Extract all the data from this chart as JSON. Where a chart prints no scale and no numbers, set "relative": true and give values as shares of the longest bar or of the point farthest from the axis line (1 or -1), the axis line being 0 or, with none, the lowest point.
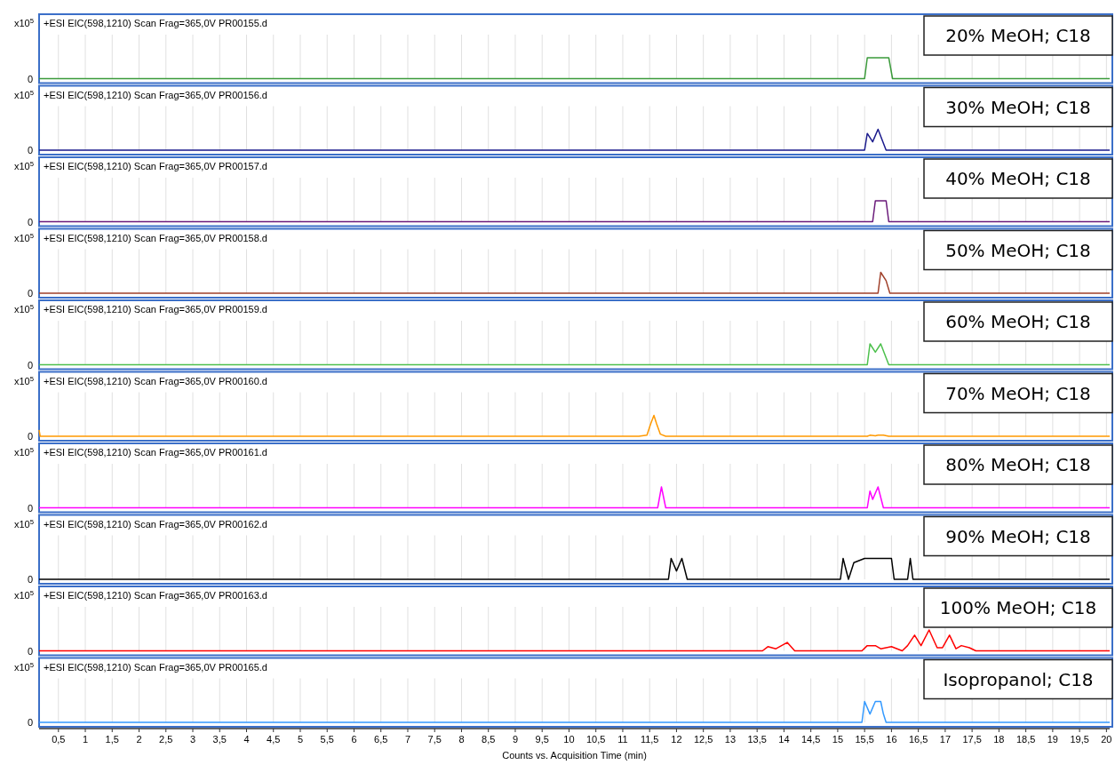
{
  "chart_data": [
    {
      "type": "line",
      "relative": true,
      "title": "20% MeOH; C18",
      "subtitle": "+ESI EIC(598,1210) Scan Frag=365,0V PR00155.d",
      "ylabel": "x10$^{5}$",
      "annotations": [
        "0"
      ],
      "grid": "x",
      "tick_labels": false,
      "xlim": [
        0.14,
        20.06
      ],
      "xticks": [
        0.5,
        1,
        1.5,
        2,
        2.5,
        3,
        3.5,
        4,
        4.5,
        5,
        5.5,
        6,
        6.5,
        7,
        7.5,
        8,
        8.5,
        9,
        9.5,
        10,
        10.5,
        11,
        11.5,
        12,
        12.5,
        13,
        13.5,
        14,
        14.5,
        15,
        15.5,
        16,
        16.5,
        17,
        17.5,
        18,
        18.5,
        19,
        19.5,
        20
      ],
      "series": [
        {
          "color": "#3a9a3a",
          "x": [
            0.14,
            15.5,
            15.55,
            15.95,
            16.02,
            20.06
          ],
          "values": [
            0,
            0,
            1,
            1,
            0,
            0
          ]
        }
      ]
    },
    {
      "type": "line",
      "relative": true,
      "title": "30% MeOH; C18",
      "subtitle": "+ESI EIC(598,1210) Scan Frag=365,0V PR00156.d",
      "ylabel": "x10$^{5}$",
      "annotations": [
        "0"
      ],
      "grid": "x",
      "tick_labels": false,
      "xlim": [
        0.14,
        20.06
      ],
      "xticks": [
        0.5,
        1,
        1.5,
        2,
        2.5,
        3,
        3.5,
        4,
        4.5,
        5,
        5.5,
        6,
        6.5,
        7,
        7.5,
        8,
        8.5,
        9,
        9.5,
        10,
        10.5,
        11,
        11.5,
        12,
        12.5,
        13,
        13.5,
        14,
        14.5,
        15,
        15.5,
        16,
        16.5,
        17,
        17.5,
        18,
        18.5,
        19,
        19.5,
        20
      ],
      "series": [
        {
          "color": "#1a1a8c",
          "x": [
            0.14,
            15.5,
            15.55,
            15.65,
            15.75,
            15.9,
            20.06
          ],
          "values": [
            0,
            0,
            0.8,
            0.4,
            1,
            0,
            0
          ]
        }
      ]
    },
    {
      "type": "line",
      "relative": true,
      "title": "40% MeOH; C18",
      "subtitle": "+ESI EIC(598,1210) Scan Frag=365,0V PR00157.d",
      "ylabel": "x10$^{5}$",
      "annotations": [
        "0"
      ],
      "grid": "x",
      "tick_labels": false,
      "xlim": [
        0.14,
        20.06
      ],
      "xticks": [
        0.5,
        1,
        1.5,
        2,
        2.5,
        3,
        3.5,
        4,
        4.5,
        5,
        5.5,
        6,
        6.5,
        7,
        7.5,
        8,
        8.5,
        9,
        9.5,
        10,
        10.5,
        11,
        11.5,
        12,
        12.5,
        13,
        13.5,
        14,
        14.5,
        15,
        15.5,
        16,
        16.5,
        17,
        17.5,
        18,
        18.5,
        19,
        19.5,
        20
      ],
      "series": [
        {
          "color": "#6a1a7a",
          "x": [
            0.14,
            15.65,
            15.7,
            15.9,
            15.95,
            20.06
          ],
          "values": [
            0,
            0,
            1,
            1,
            0,
            0
          ]
        }
      ]
    },
    {
      "type": "line",
      "relative": true,
      "title": "50% MeOH; C18",
      "subtitle": "+ESI EIC(598,1210) Scan Frag=365,0V PR00158.d",
      "ylabel": "x10$^{5}$",
      "annotations": [
        "0"
      ],
      "grid": "x",
      "tick_labels": false,
      "xlim": [
        0.14,
        20.06
      ],
      "xticks": [
        0.5,
        1,
        1.5,
        2,
        2.5,
        3,
        3.5,
        4,
        4.5,
        5,
        5.5,
        6,
        6.5,
        7,
        7.5,
        8,
        8.5,
        9,
        9.5,
        10,
        10.5,
        11,
        11.5,
        12,
        12.5,
        13,
        13.5,
        14,
        14.5,
        15,
        15.5,
        16,
        16.5,
        17,
        17.5,
        18,
        18.5,
        19,
        19.5,
        20
      ],
      "series": [
        {
          "color": "#a0402a",
          "x": [
            0.14,
            15.75,
            15.8,
            15.9,
            15.97,
            20.06
          ],
          "values": [
            0,
            0,
            1,
            0.6,
            0,
            0
          ]
        }
      ]
    },
    {
      "type": "line",
      "relative": true,
      "title": "60% MeOH; C18",
      "subtitle": "+ESI EIC(598,1210) Scan Frag=365,0V PR00159.d",
      "ylabel": "x10$^{5}$",
      "annotations": [
        "0"
      ],
      "grid": "x",
      "tick_labels": false,
      "xlim": [
        0.14,
        20.06
      ],
      "xticks": [
        0.5,
        1,
        1.5,
        2,
        2.5,
        3,
        3.5,
        4,
        4.5,
        5,
        5.5,
        6,
        6.5,
        7,
        7.5,
        8,
        8.5,
        9,
        9.5,
        10,
        10.5,
        11,
        11.5,
        12,
        12.5,
        13,
        13.5,
        14,
        14.5,
        15,
        15.5,
        16,
        16.5,
        17,
        17.5,
        18,
        18.5,
        19,
        19.5,
        20
      ],
      "series": [
        {
          "color": "#4cc04c",
          "x": [
            0.14,
            15.55,
            15.6,
            15.7,
            15.8,
            15.95,
            20.06
          ],
          "values": [
            0,
            0,
            1,
            0.6,
            1,
            0,
            0
          ]
        }
      ]
    },
    {
      "type": "line",
      "relative": true,
      "title": "70% MeOH; C18",
      "subtitle": "+ESI EIC(598,1210) Scan Frag=365,0V PR00160.d",
      "ylabel": "x10$^{5}$",
      "annotations": [
        "0"
      ],
      "grid": "x",
      "tick_labels": false,
      "xlim": [
        0.14,
        20.06
      ],
      "xticks": [
        0.5,
        1,
        1.5,
        2,
        2.5,
        3,
        3.5,
        4,
        4.5,
        5,
        5.5,
        6,
        6.5,
        7,
        7.5,
        8,
        8.5,
        9,
        9.5,
        10,
        10.5,
        11,
        11.5,
        12,
        12.5,
        13,
        13.5,
        14,
        14.5,
        15,
        15.5,
        16,
        16.5,
        17,
        17.5,
        18,
        18.5,
        19,
        19.5,
        20
      ],
      "series": [
        {
          "color": "#ff9900",
          "x": [
            0.14,
            0.16,
            11.3,
            11.45,
            11.52,
            11.58,
            11.63,
            11.7,
            11.8,
            15.55,
            15.6,
            15.7,
            15.75,
            15.85,
            15.95,
            20.06
          ],
          "values": [
            0.3,
            0,
            0,
            0.05,
            0.6,
            1,
            0.6,
            0.1,
            0,
            0,
            0.05,
            0.02,
            0.05,
            0.05,
            0,
            0
          ]
        }
      ]
    },
    {
      "type": "line",
      "relative": true,
      "title": "80% MeOH; C18",
      "subtitle": "+ESI EIC(598,1210) Scan Frag=365,0V PR00161.d",
      "ylabel": "x10$^{5}$",
      "annotations": [
        "0"
      ],
      "grid": "x",
      "tick_labels": false,
      "xlim": [
        0.14,
        20.06
      ],
      "xticks": [
        0.5,
        1,
        1.5,
        2,
        2.5,
        3,
        3.5,
        4,
        4.5,
        5,
        5.5,
        6,
        6.5,
        7,
        7.5,
        8,
        8.5,
        9,
        9.5,
        10,
        10.5,
        11,
        11.5,
        12,
        12.5,
        13,
        13.5,
        14,
        14.5,
        15,
        15.5,
        16,
        16.5,
        17,
        17.5,
        18,
        18.5,
        19,
        19.5,
        20
      ],
      "series": [
        {
          "color": "#ff00ff",
          "x": [
            0.14,
            11.65,
            11.72,
            11.8,
            15.55,
            15.6,
            15.65,
            15.75,
            15.85,
            20.06
          ],
          "values": [
            0,
            0,
            1,
            0,
            0,
            0.8,
            0.4,
            1,
            0,
            0
          ]
        }
      ]
    },
    {
      "type": "line",
      "relative": true,
      "title": "90% MeOH; C18",
      "subtitle": "+ESI EIC(598,1210) Scan Frag=365,0V PR00162.d",
      "ylabel": "x10$^{5}$",
      "annotations": [
        "0"
      ],
      "grid": "x",
      "tick_labels": false,
      "xlim": [
        0.14,
        20.06
      ],
      "xticks": [
        0.5,
        1,
        1.5,
        2,
        2.5,
        3,
        3.5,
        4,
        4.5,
        5,
        5.5,
        6,
        6.5,
        7,
        7.5,
        8,
        8.5,
        9,
        9.5,
        10,
        10.5,
        11,
        11.5,
        12,
        12.5,
        13,
        13.5,
        14,
        14.5,
        15,
        15.5,
        16,
        16.5,
        17,
        17.5,
        18,
        18.5,
        19,
        19.5,
        20
      ],
      "series": [
        {
          "color": "#000000",
          "x": [
            0.14,
            11.85,
            11.9,
            12.0,
            12.1,
            12.2,
            15.05,
            15.1,
            15.2,
            15.3,
            15.5,
            16.0,
            16.05,
            16.3,
            16.35,
            16.4,
            20.06
          ],
          "values": [
            0,
            0,
            1,
            0.4,
            1,
            0,
            0,
            1,
            0,
            0.8,
            1,
            1,
            0,
            0,
            1,
            0,
            0
          ]
        }
      ]
    },
    {
      "type": "line",
      "relative": true,
      "title": "100% MeOH; C18",
      "subtitle": "+ESI EIC(598,1210) Scan Frag=365,0V PR00163.d",
      "ylabel": "x10$^{5}$",
      "annotations": [
        "0"
      ],
      "grid": "x",
      "tick_labels": false,
      "xlim": [
        0.14,
        20.06
      ],
      "xticks": [
        0.5,
        1,
        1.5,
        2,
        2.5,
        3,
        3.5,
        4,
        4.5,
        5,
        5.5,
        6,
        6.5,
        7,
        7.5,
        8,
        8.5,
        9,
        9.5,
        10,
        10.5,
        11,
        11.5,
        12,
        12.5,
        13,
        13.5,
        14,
        14.5,
        15,
        15.5,
        16,
        16.5,
        17,
        17.5,
        18,
        18.5,
        19,
        19.5,
        20
      ],
      "series": [
        {
          "color": "#ff0000",
          "x": [
            0.14,
            13.6,
            13.7,
            13.85,
            14.06,
            14.2,
            15.45,
            15.55,
            15.7,
            15.8,
            16.0,
            16.2,
            16.3,
            16.43,
            16.55,
            16.7,
            16.85,
            16.95,
            17.08,
            17.2,
            17.3,
            17.45,
            17.57,
            20.06
          ],
          "values": [
            0,
            0,
            0.2,
            0.1,
            0.4,
            0,
            0,
            0.25,
            0.25,
            0.1,
            0.2,
            0,
            0.25,
            0.75,
            0.25,
            1,
            0.15,
            0.15,
            0.75,
            0.1,
            0.25,
            0.15,
            0,
            0
          ]
        }
      ]
    },
    {
      "type": "line",
      "relative": true,
      "title": "Isopropanol; C18",
      "subtitle": "+ESI EIC(598,1210) Scan Frag=365,0V PR00165.d",
      "ylabel": "x10$^{5}$",
      "xlabel": "Counts vs. Acquisition Time (min)",
      "annotations": [
        "0"
      ],
      "grid": "x",
      "tick_labels": "x",
      "xlim": [
        0.14,
        20.06
      ],
      "xticks": [
        {
          "value": 0.5,
          "label": "0,5"
        },
        1,
        {
          "value": 1.5,
          "label": "1,5"
        },
        2,
        {
          "value": 2.5,
          "label": "2,5"
        },
        3,
        {
          "value": 3.5,
          "label": "3,5"
        },
        4,
        {
          "value": 4.5,
          "label": "4,5"
        },
        5,
        {
          "value": 5.5,
          "label": "5,5"
        },
        6,
        {
          "value": 6.5,
          "label": "6,5"
        },
        7,
        {
          "value": 7.5,
          "label": "7,5"
        },
        8,
        {
          "value": 8.5,
          "label": "8,5"
        },
        9,
        {
          "value": 9.5,
          "label": "9,5"
        },
        10,
        {
          "value": 10.5,
          "label": "10,5"
        },
        11,
        {
          "value": 11.5,
          "label": "11,5"
        },
        12,
        {
          "value": 12.5,
          "label": "12,5"
        },
        13,
        {
          "value": 13.5,
          "label": "13,5"
        },
        14,
        {
          "value": 14.5,
          "label": "14,5"
        },
        15,
        {
          "value": 15.5,
          "label": "15,5"
        },
        16,
        {
          "value": 16.5,
          "label": "16,5"
        },
        17,
        {
          "value": 17.5,
          "label": "17,5"
        },
        18,
        {
          "value": 18.5,
          "label": "18,5"
        },
        19,
        {
          "value": 19.5,
          "label": "19,5"
        },
        20
      ],
      "series": [
        {
          "color": "#3399ff",
          "x": [
            0.14,
            15.45,
            15.5,
            15.6,
            15.7,
            15.8,
            15.85,
            15.9,
            20.06
          ],
          "values": [
            0,
            0,
            1,
            0.4,
            1,
            1,
            0.4,
            0,
            0
          ]
        }
      ]
    }
  ]
}
